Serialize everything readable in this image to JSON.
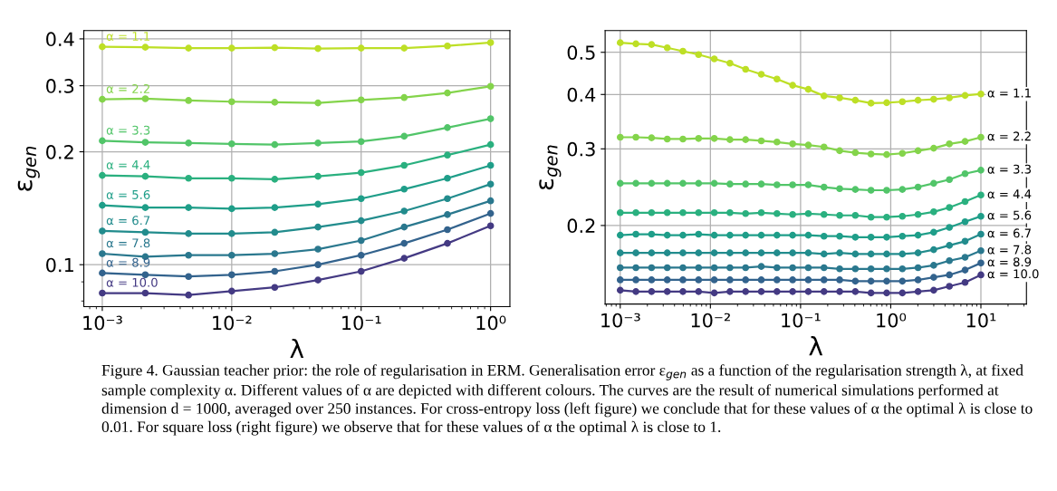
{
  "chart_data": [
    {
      "type": "line",
      "xlabel": "λ",
      "ylabel": "ε$_{gen}$",
      "log": "xy",
      "grid": true,
      "marker": "circle",
      "line_style": "solid",
      "x": [
        0.001,
        0.00215,
        0.00464,
        0.01,
        0.0215,
        0.0464,
        0.1,
        0.215,
        0.464,
        1
      ],
      "xlim": [
        0.00072,
        1.41
      ],
      "ylim": [
        0.0773,
        0.421
      ],
      "xticks": [
        {
          "value": 0.001,
          "label": "10⁻³"
        },
        {
          "value": 0.01,
          "label": "10⁻²"
        },
        {
          "value": 0.1,
          "label": "10⁻¹"
        },
        {
          "value": 1,
          "label": "10⁰"
        }
      ],
      "yticks": [
        0.1,
        0.2,
        0.3,
        0.4
      ],
      "series": [
        {
          "name": "α = 1.1",
          "color": "#bddf26",
          "values": [
            0.381,
            0.38,
            0.378,
            0.378,
            0.379,
            0.377,
            0.378,
            0.378,
            0.383,
            0.391
          ]
        },
        {
          "name": "α = 2.2",
          "color": "#84d44b",
          "values": [
            0.276,
            0.277,
            0.274,
            0.272,
            0.271,
            0.27,
            0.275,
            0.279,
            0.287,
            0.299
          ]
        },
        {
          "name": "α = 3.3",
          "color": "#52c569",
          "values": [
            0.214,
            0.212,
            0.211,
            0.21,
            0.209,
            0.211,
            0.213,
            0.22,
            0.232,
            0.245
          ]
        },
        {
          "name": "α = 4.4",
          "color": "#2ab07f",
          "values": [
            0.173,
            0.172,
            0.17,
            0.17,
            0.169,
            0.172,
            0.176,
            0.184,
            0.196,
            0.209
          ]
        },
        {
          "name": "α = 5.6",
          "color": "#1f9e89",
          "values": [
            0.144,
            0.142,
            0.142,
            0.141,
            0.142,
            0.145,
            0.15,
            0.159,
            0.17,
            0.184
          ]
        },
        {
          "name": "α = 6.7",
          "color": "#228c8d",
          "values": [
            0.123,
            0.122,
            0.121,
            0.121,
            0.122,
            0.126,
            0.131,
            0.139,
            0.15,
            0.164
          ]
        },
        {
          "name": "α = 7.8",
          "color": "#2a788e",
          "values": [
            0.107,
            0.105,
            0.106,
            0.106,
            0.107,
            0.11,
            0.116,
            0.126,
            0.136,
            0.148
          ]
        },
        {
          "name": "α = 8.9",
          "color": "#33638d",
          "values": [
            0.095,
            0.094,
            0.093,
            0.094,
            0.096,
            0.1,
            0.106,
            0.114,
            0.124,
            0.137
          ]
        },
        {
          "name": "α = 10.0",
          "color": "#443a83",
          "values": [
            0.084,
            0.084,
            0.083,
            0.085,
            0.087,
            0.091,
            0.096,
            0.104,
            0.114,
            0.127
          ]
        }
      ],
      "annotations": [
        "Figure 4. Gaussian teacher prior: the role of regularisation in ERM. Generalisation error ε$_{gen}$ as a function of the regularisation strength λ, at fixed sample complexity α. Different values of α are depicted with different colours. The curves are the result of numerical simulations performed at dimension d = 1000, averaged over 250 instances. For cross-entropy loss (left figure) we conclude that for these values of α the optimal λ is close to 0.01. For square loss (right figure) we observe that for these values of α the optimal λ is close to 1."
      ]
    },
    {
      "type": "line",
      "xlabel": "λ",
      "ylabel": "ε$_{gen}$",
      "log": "xy",
      "grid": true,
      "marker": "circle",
      "line_style": "solid",
      "x": [
        0.001,
        0.001492,
        0.002226,
        0.003322,
        0.004957,
        0.007397,
        0.01104,
        0.01647,
        0.02458,
        0.03668,
        0.05473,
        0.08168,
        0.1219,
        0.1819,
        0.2714,
        0.405,
        0.6043,
        0.9018,
        1.346,
        2.008,
        2.996,
        4.471,
        6.672,
        10
      ],
      "xlim": [
        0.00068,
        32
      ],
      "ylim": [
        0.132,
        0.561
      ],
      "xticks": [
        {
          "value": 0.001,
          "label": "10⁻³"
        },
        {
          "value": 0.01,
          "label": "10⁻²"
        },
        {
          "value": 0.1,
          "label": "10⁻¹"
        },
        {
          "value": 1,
          "label": "10⁰"
        },
        {
          "value": 10,
          "label": "10¹"
        }
      ],
      "yticks": [
        0.2,
        0.3,
        0.4,
        0.5
      ],
      "series": [
        {
          "name": "α = 1.1",
          "color": "#bddf26",
          "values": [
            0.526,
            0.523,
            0.521,
            0.512,
            0.503,
            0.494,
            0.483,
            0.472,
            0.457,
            0.445,
            0.434,
            0.42,
            0.411,
            0.397,
            0.393,
            0.388,
            0.382,
            0.383,
            0.385,
            0.388,
            0.39,
            0.393,
            0.398,
            0.401
          ]
        },
        {
          "name": "α = 2.2",
          "color": "#84d44b",
          "values": [
            0.319,
            0.319,
            0.318,
            0.316,
            0.316,
            0.317,
            0.317,
            0.315,
            0.315,
            0.313,
            0.311,
            0.308,
            0.306,
            0.303,
            0.297,
            0.294,
            0.292,
            0.291,
            0.293,
            0.297,
            0.301,
            0.308,
            0.312,
            0.319
          ]
        },
        {
          "name": "α = 3.3",
          "color": "#52c569",
          "values": [
            0.25,
            0.25,
            0.25,
            0.25,
            0.25,
            0.25,
            0.25,
            0.249,
            0.249,
            0.249,
            0.248,
            0.248,
            0.248,
            0.245,
            0.243,
            0.242,
            0.241,
            0.241,
            0.242,
            0.245,
            0.25,
            0.255,
            0.263,
            0.268
          ]
        },
        {
          "name": "α = 4.4",
          "color": "#2ab07f",
          "values": [
            0.214,
            0.214,
            0.214,
            0.214,
            0.214,
            0.214,
            0.214,
            0.214,
            0.213,
            0.214,
            0.213,
            0.212,
            0.213,
            0.212,
            0.211,
            0.211,
            0.209,
            0.209,
            0.21,
            0.212,
            0.215,
            0.22,
            0.227,
            0.235
          ]
        },
        {
          "name": "α = 5.6",
          "color": "#1f9e89",
          "values": [
            0.19,
            0.191,
            0.191,
            0.19,
            0.19,
            0.191,
            0.19,
            0.19,
            0.19,
            0.19,
            0.19,
            0.19,
            0.19,
            0.189,
            0.189,
            0.188,
            0.188,
            0.188,
            0.189,
            0.19,
            0.193,
            0.198,
            0.204,
            0.21
          ]
        },
        {
          "name": "α = 6.7",
          "color": "#228c8d",
          "values": [
            0.173,
            0.173,
            0.173,
            0.173,
            0.173,
            0.173,
            0.173,
            0.173,
            0.173,
            0.173,
            0.173,
            0.173,
            0.173,
            0.172,
            0.173,
            0.172,
            0.172,
            0.172,
            0.172,
            0.173,
            0.176,
            0.18,
            0.184,
            0.191
          ]
        },
        {
          "name": "α = 7.8",
          "color": "#2a788e",
          "values": [
            0.16,
            0.16,
            0.16,
            0.16,
            0.16,
            0.16,
            0.16,
            0.16,
            0.16,
            0.161,
            0.16,
            0.16,
            0.16,
            0.16,
            0.159,
            0.159,
            0.159,
            0.159,
            0.159,
            0.16,
            0.162,
            0.166,
            0.169,
            0.175
          ]
        },
        {
          "name": "α = 8.9",
          "color": "#33638d",
          "values": [
            0.15,
            0.15,
            0.15,
            0.15,
            0.15,
            0.15,
            0.15,
            0.15,
            0.15,
            0.15,
            0.15,
            0.15,
            0.15,
            0.15,
            0.15,
            0.149,
            0.149,
            0.149,
            0.149,
            0.15,
            0.152,
            0.154,
            0.158,
            0.164
          ]
        },
        {
          "name": "α = 10.0",
          "color": "#443a83",
          "values": [
            0.142,
            0.141,
            0.141,
            0.141,
            0.141,
            0.141,
            0.14,
            0.141,
            0.141,
            0.141,
            0.141,
            0.141,
            0.141,
            0.141,
            0.141,
            0.141,
            0.14,
            0.14,
            0.14,
            0.141,
            0.142,
            0.145,
            0.148,
            0.154
          ]
        }
      ]
    }
  ]
}
